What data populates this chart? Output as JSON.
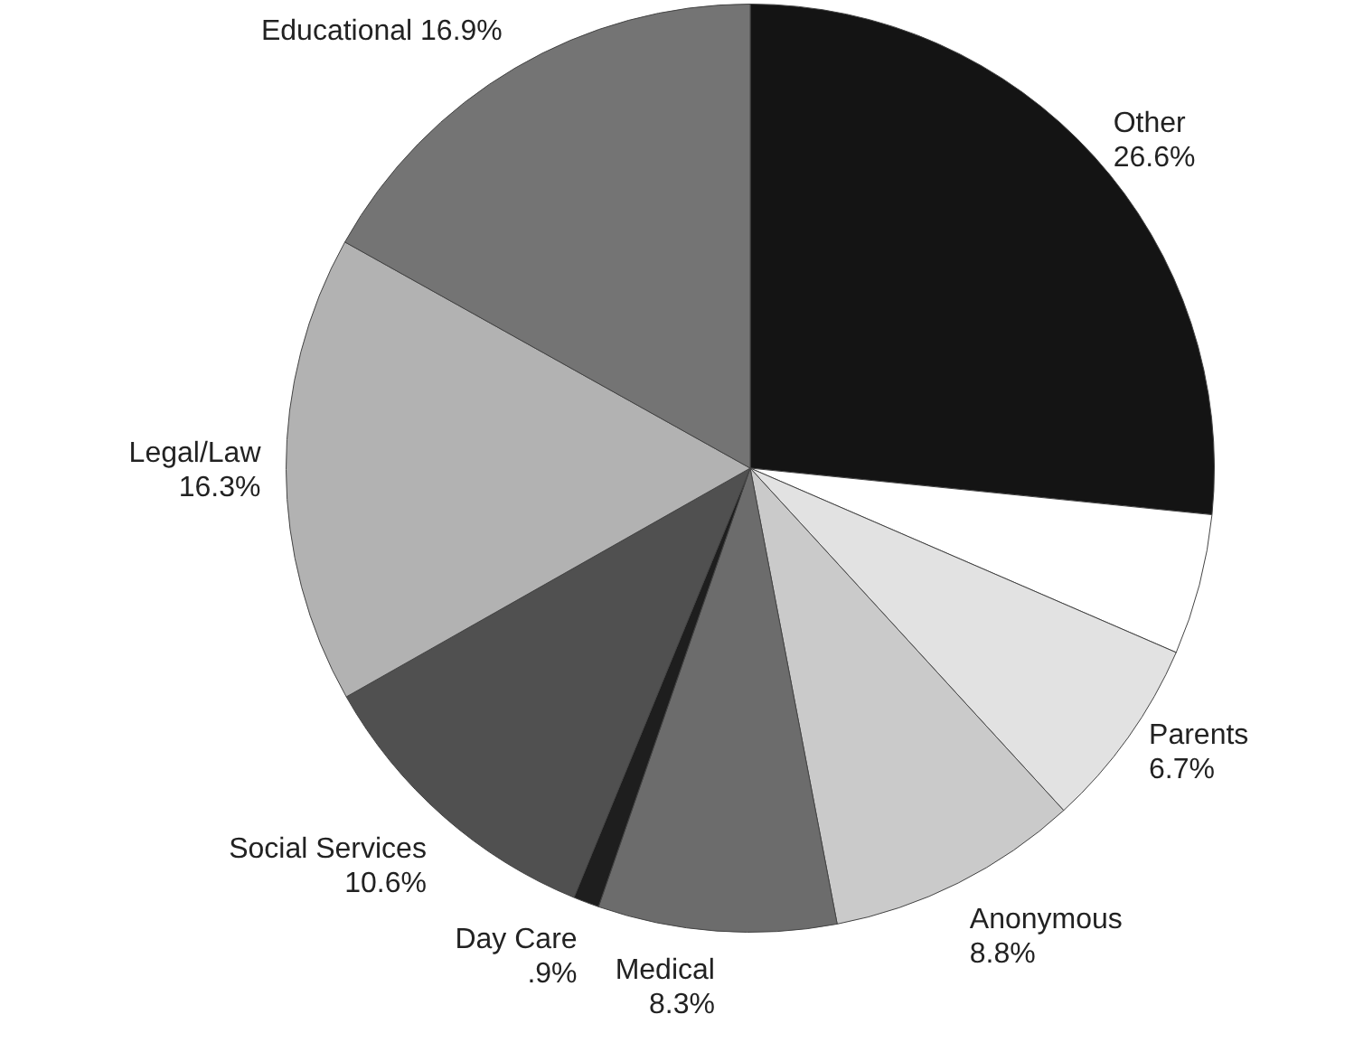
{
  "chart_data": {
    "type": "pie",
    "categories": [
      "Other",
      null,
      "Parents",
      "Anonymous",
      "Medical",
      "Day Care",
      "Social Services",
      "Legal/Law",
      "Educational"
    ],
    "values": [
      26.6,
      4.9,
      6.7,
      8.8,
      8.3,
      0.9,
      10.6,
      16.3,
      16.9
    ],
    "colors": [
      "#141414",
      "#ffffff",
      "#e2e2e2",
      "#cacaca",
      "#6c6c6c",
      "#1e1e1e",
      "#505050",
      "#b2b2b2",
      "#747474"
    ],
    "value_labels": [
      "26.6%",
      null,
      "6.7%",
      "8.8%",
      "8.3%",
      ".9%",
      "10.6%",
      "16.3%",
      "16.9%"
    ],
    "legend": false
  }
}
